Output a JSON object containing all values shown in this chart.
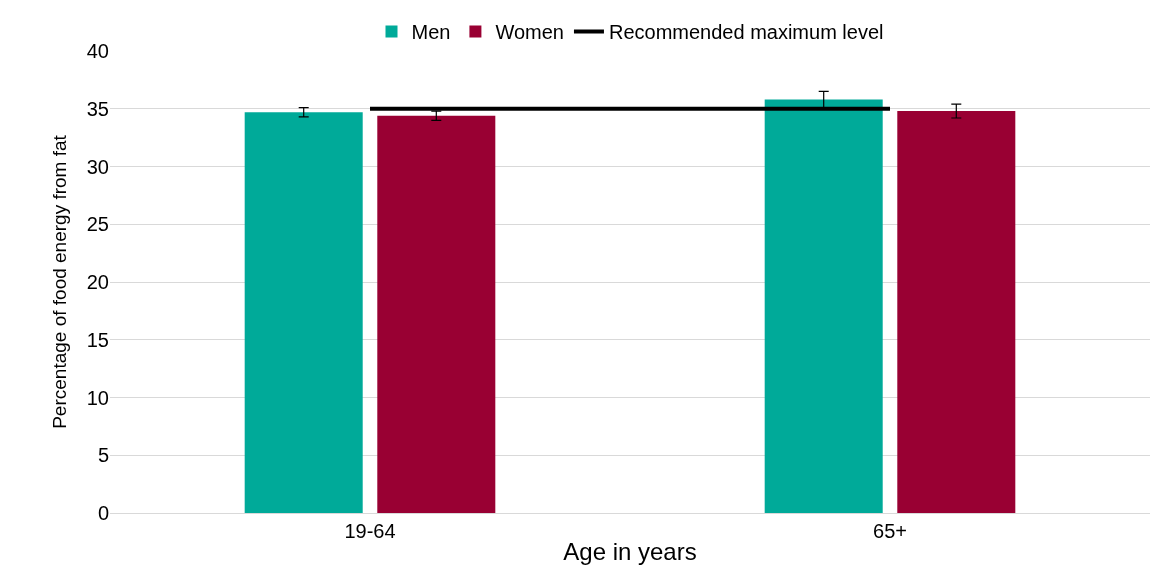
{
  "chart_data": {
    "type": "bar",
    "xlabel": "Age in years",
    "ylabel": "Percentage of food energy from fat",
    "categories": [
      "19-64",
      "65+"
    ],
    "series": [
      {
        "name": "Men",
        "color": "#00aa99",
        "values": [
          34.7,
          35.8
        ],
        "errors": [
          0.4,
          0.7
        ]
      },
      {
        "name": "Women",
        "color": "#990033",
        "values": [
          34.4,
          34.8
        ],
        "errors": [
          0.4,
          0.6
        ]
      },
      {
        "name": "Recommended maximum level",
        "type": "line",
        "color": "#000000",
        "values": [
          35,
          35
        ]
      }
    ],
    "ylim": [
      0,
      40
    ],
    "yticks": [
      0,
      5,
      10,
      15,
      20,
      25,
      30,
      35,
      40
    ],
    "grid": "y",
    "legend": "top"
  }
}
